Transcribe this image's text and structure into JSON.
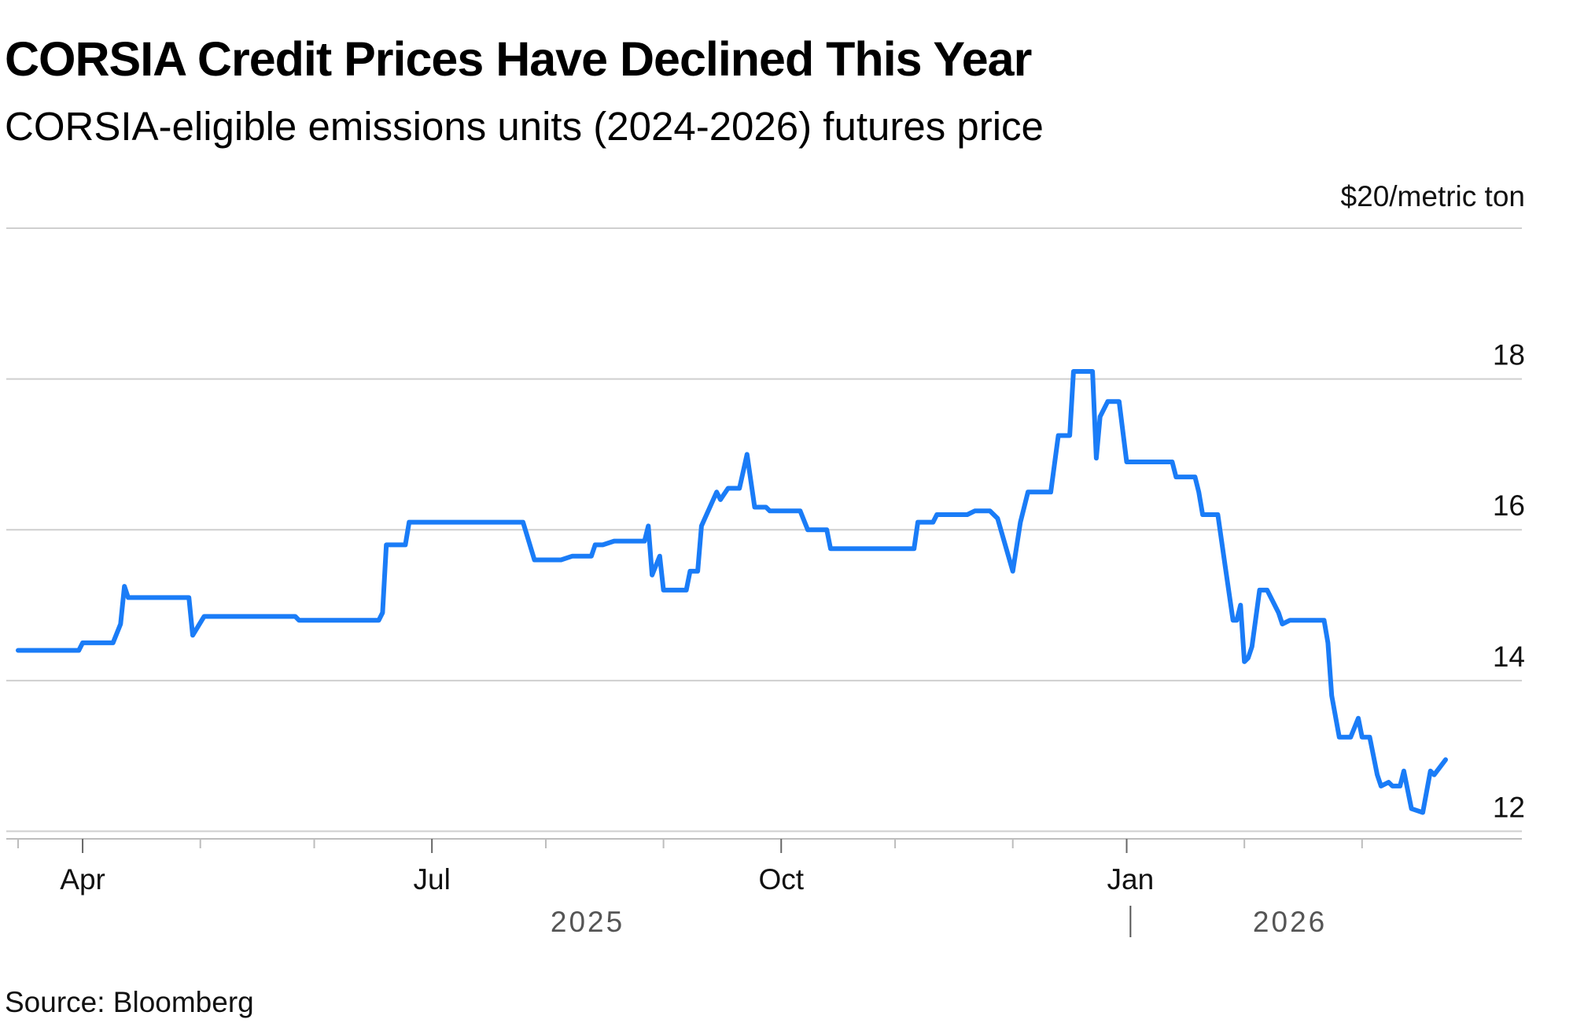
{
  "chart_data": {
    "type": "line",
    "title": "CORSIA Credit Prices Have Declined This Year",
    "subtitle": "CORSIA-eligible emissions units (2024-2026) futures price",
    "source": "Source: Bloomberg",
    "ylabel": "$20/metric ton",
    "ylim": [
      11.9,
      20
    ],
    "y_ticks": [
      {
        "value": 12,
        "label": "12"
      },
      {
        "value": 14,
        "label": "14"
      },
      {
        "value": 16,
        "label": "16"
      },
      {
        "value": 18,
        "label": "18"
      },
      {
        "value": 20,
        "label": ""
      }
    ],
    "xlim": [
      0,
      390
    ],
    "x_month_ticks": [
      0,
      17,
      48,
      78,
      109,
      139,
      170,
      201,
      231,
      262,
      292,
      323,
      354
    ],
    "x_labels": [
      {
        "x": 17,
        "label": "Apr"
      },
      {
        "x": 109,
        "label": "Jul"
      },
      {
        "x": 201,
        "label": "Oct"
      },
      {
        "x": 293,
        "label": "Jan"
      }
    ],
    "year_labels": [
      {
        "x": 150,
        "label": "2025"
      },
      {
        "x": 335,
        "label": "2026"
      }
    ],
    "year_divider_x": 293,
    "x_unit": "days since 2025-03-15",
    "series": [
      {
        "name": "CORSIA-eligible emissions units (2024-2026) futures price",
        "color": "#1a7cf7",
        "points": [
          [
            0,
            14.4
          ],
          [
            16,
            14.4
          ],
          [
            17,
            14.5
          ],
          [
            25,
            14.5
          ],
          [
            27,
            14.75
          ],
          [
            28,
            15.25
          ],
          [
            29,
            15.1
          ],
          [
            45,
            15.1
          ],
          [
            46,
            14.6
          ],
          [
            49,
            14.85
          ],
          [
            73,
            14.85
          ],
          [
            74,
            14.8
          ],
          [
            95,
            14.8
          ],
          [
            96,
            14.9
          ],
          [
            97,
            15.8
          ],
          [
            102,
            15.8
          ],
          [
            103,
            16.1
          ],
          [
            133,
            16.1
          ],
          [
            136,
            15.6
          ],
          [
            143,
            15.6
          ],
          [
            146,
            15.65
          ],
          [
            151,
            15.65
          ],
          [
            152,
            15.8
          ],
          [
            154,
            15.8
          ],
          [
            157,
            15.85
          ],
          [
            165,
            15.85
          ],
          [
            166,
            16.05
          ],
          [
            167,
            15.4
          ],
          [
            169,
            15.65
          ],
          [
            170,
            15.2
          ],
          [
            176,
            15.2
          ],
          [
            177,
            15.45
          ],
          [
            179,
            15.45
          ],
          [
            180,
            16.05
          ],
          [
            184,
            16.5
          ],
          [
            185,
            16.4
          ],
          [
            187,
            16.55
          ],
          [
            190,
            16.55
          ],
          [
            192,
            17.0
          ],
          [
            194,
            16.3
          ],
          [
            197,
            16.3
          ],
          [
            198,
            16.25
          ],
          [
            206,
            16.25
          ],
          [
            208,
            16.0
          ],
          [
            213,
            16.0
          ],
          [
            214,
            15.75
          ],
          [
            236,
            15.75
          ],
          [
            237,
            16.1
          ],
          [
            241,
            16.1
          ],
          [
            242,
            16.2
          ],
          [
            250,
            16.2
          ],
          [
            252,
            16.25
          ],
          [
            256,
            16.25
          ],
          [
            258,
            16.15
          ],
          [
            262,
            15.45
          ],
          [
            264,
            16.1
          ],
          [
            266,
            16.5
          ],
          [
            272,
            16.5
          ],
          [
            274,
            17.25
          ],
          [
            277,
            17.25
          ],
          [
            278,
            18.1
          ],
          [
            283,
            18.1
          ],
          [
            284,
            16.95
          ],
          [
            285,
            17.5
          ],
          [
            287,
            17.7
          ],
          [
            290,
            17.7
          ],
          [
            292,
            16.9
          ],
          [
            304,
            16.9
          ],
          [
            305,
            16.7
          ],
          [
            310,
            16.7
          ],
          [
            311,
            16.5
          ],
          [
            312,
            16.2
          ],
          [
            316,
            16.2
          ],
          [
            318,
            15.5
          ],
          [
            320,
            14.8
          ],
          [
            321,
            14.8
          ],
          [
            322,
            15.0
          ],
          [
            323,
            14.25
          ],
          [
            324,
            14.3
          ],
          [
            325,
            14.45
          ],
          [
            327,
            15.2
          ],
          [
            329,
            15.2
          ],
          [
            332,
            14.9
          ],
          [
            333,
            14.75
          ],
          [
            335,
            14.8
          ],
          [
            344,
            14.8
          ],
          [
            345,
            14.5
          ],
          [
            346,
            13.8
          ],
          [
            348,
            13.25
          ],
          [
            351,
            13.25
          ],
          [
            353,
            13.5
          ],
          [
            354,
            13.25
          ],
          [
            356,
            13.25
          ],
          [
            358,
            12.75
          ],
          [
            359,
            12.6
          ],
          [
            361,
            12.65
          ],
          [
            362,
            12.6
          ],
          [
            364,
            12.6
          ],
          [
            365,
            12.8
          ],
          [
            367,
            12.3
          ],
          [
            370,
            12.25
          ],
          [
            372,
            12.8
          ],
          [
            373,
            12.75
          ],
          [
            376,
            12.95
          ]
        ]
      }
    ]
  }
}
